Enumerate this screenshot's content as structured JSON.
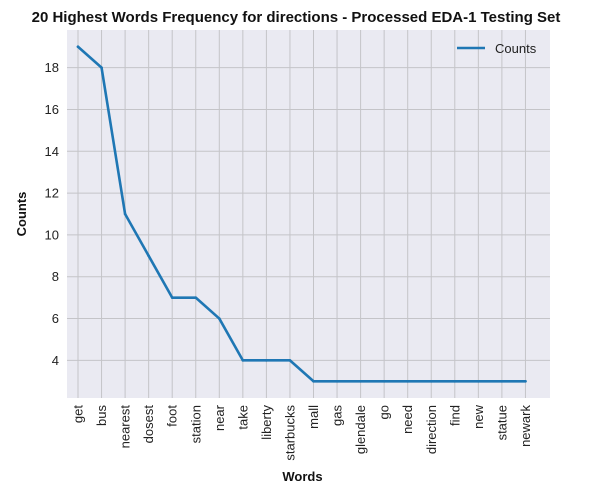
{
  "chart_data": {
    "type": "line",
    "title": "20 Highest Words Frequency for directions - Processed EDA-1 Testing Set",
    "xlabel": "Words",
    "ylabel": "Counts",
    "categories": [
      "get",
      "bus",
      "nearest",
      "dosest",
      "foot",
      "station",
      "near",
      "take",
      "liberty",
      "starbucks",
      "mall",
      "gas",
      "glendale",
      "go",
      "need",
      "direction",
      "find",
      "new",
      "statue",
      "newark"
    ],
    "series": [
      {
        "name": "Counts",
        "values": [
          19,
          18,
          11,
          9,
          7,
          7,
          6,
          4,
          4,
          4,
          3,
          3,
          3,
          3,
          3,
          3,
          3,
          3,
          3,
          3
        ],
        "color": "#1f77b4"
      }
    ],
    "ylim": [
      2.2,
      19.8
    ],
    "yticks": [
      4,
      6,
      8,
      10,
      12,
      14,
      16,
      18
    ],
    "grid": true,
    "legend_position": "top-right",
    "background_color": "#eaeaf2",
    "grid_color": "#c4c4c8"
  }
}
